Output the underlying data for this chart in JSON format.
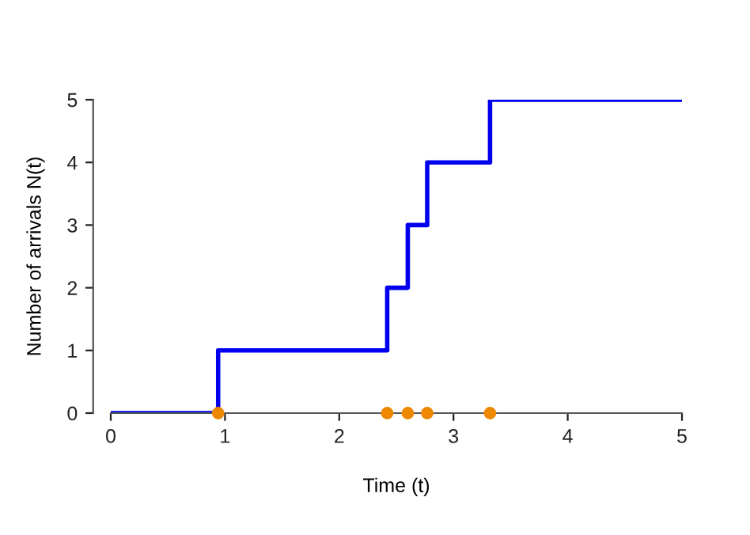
{
  "chart_data": {
    "type": "step",
    "xlabel": "Time (t)",
    "ylabel": "Number of arrivals N(t)",
    "series": [
      {
        "color": "#0000ee",
        "x": [
          0,
          0.94,
          2.42,
          2.6,
          2.77,
          3.32,
          5
        ],
        "values": [
          0,
          1,
          2,
          3,
          4,
          5,
          5
        ]
      },
      {
        "type": "scatter",
        "color": "#ee8800",
        "x": [
          0.94,
          2.42,
          2.6,
          2.77,
          3.32
        ],
        "values": [
          0,
          0,
          0,
          0,
          0
        ]
      }
    ],
    "xlim": [
      0,
      5
    ],
    "ylim": [
      0,
      5
    ],
    "xticks": [
      0,
      1,
      2,
      3,
      4,
      5
    ],
    "yticks": [
      0,
      1,
      2,
      3,
      4,
      5
    ],
    "grid": false
  }
}
